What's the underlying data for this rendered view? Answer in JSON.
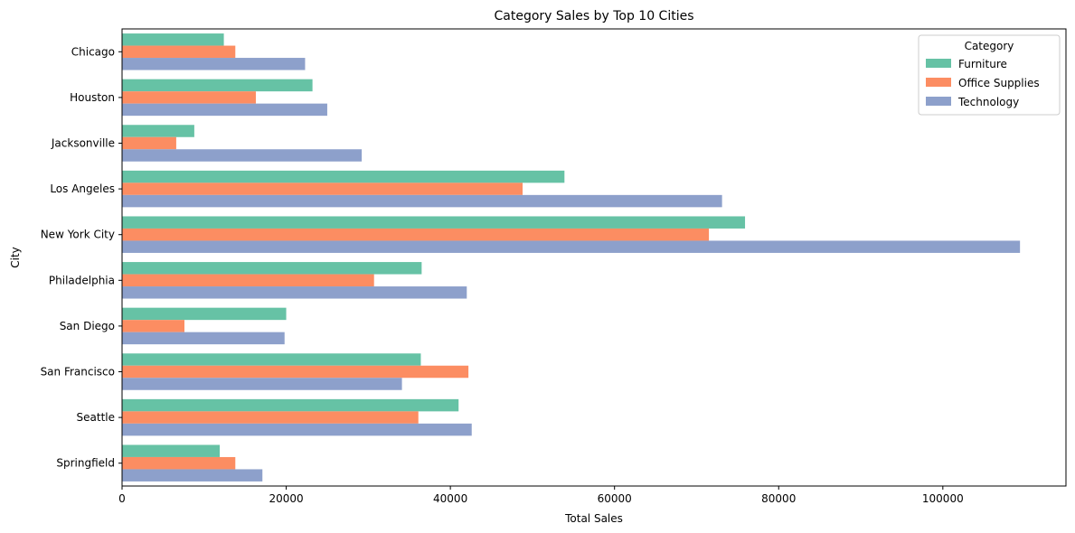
{
  "chart_data": {
    "type": "bar",
    "orientation": "horizontal",
    "title": "Category Sales by Top 10 Cities",
    "xlabel": "Total Sales",
    "ylabel": "City",
    "xlim": [
      0,
      115000
    ],
    "xticks": [
      0,
      20000,
      40000,
      60000,
      80000,
      100000
    ],
    "xtick_labels": [
      "0",
      "20000",
      "40000",
      "60000",
      "80000",
      "100000"
    ],
    "grid": false,
    "legend": {
      "title": "Category",
      "placement": "top-right"
    },
    "categories": [
      "Chicago",
      "Houston",
      "Jacksonville",
      "Los Angeles",
      "New York City",
      "Philadelphia",
      "San Diego",
      "San Francisco",
      "Seattle",
      "Springfield"
    ],
    "series": [
      {
        "name": "Furniture",
        "color": "#66c2a5",
        "values": [
          12400,
          23200,
          8800,
          53900,
          75900,
          36500,
          20000,
          36400,
          41000,
          11900
        ]
      },
      {
        "name": "Office Supplies",
        "color": "#fc8d62",
        "values": [
          13800,
          16300,
          6600,
          48800,
          71500,
          30700,
          7600,
          42200,
          36100,
          13800
        ]
      },
      {
        "name": "Technology",
        "color": "#8da0cb",
        "values": [
          22300,
          25000,
          29200,
          73100,
          109400,
          42000,
          19800,
          34100,
          42600,
          17100
        ]
      }
    ]
  }
}
